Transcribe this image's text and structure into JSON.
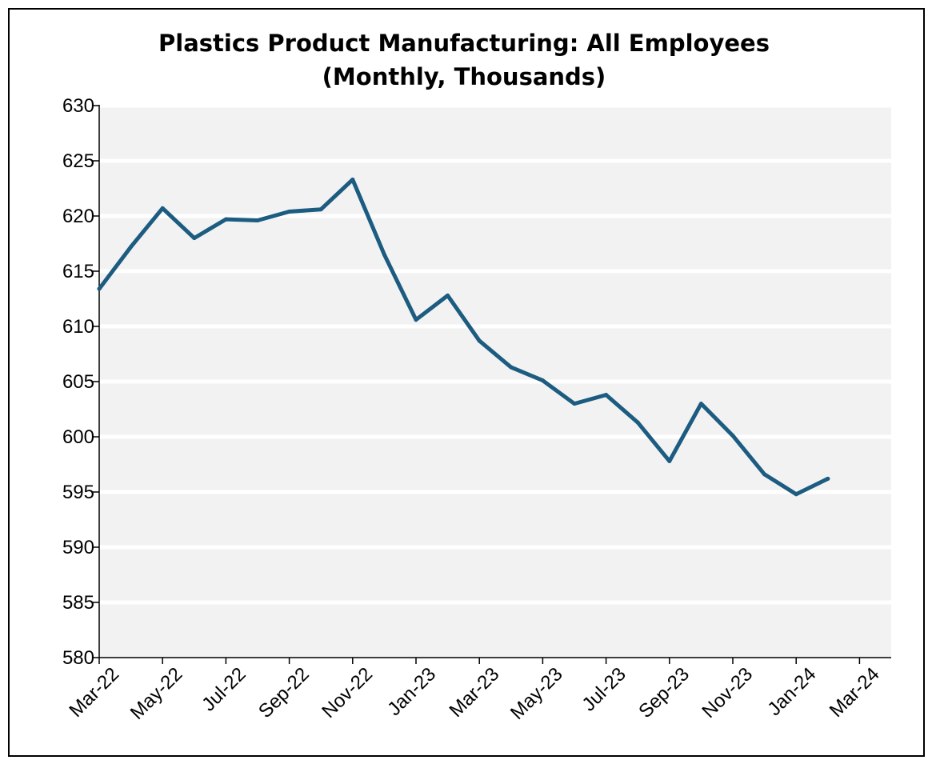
{
  "chart_data": {
    "type": "line",
    "title_line1": "Plastics Product Manufacturing: All Employees",
    "title_line2": "(Monthly, Thousands)",
    "xlabel": "",
    "ylabel": "",
    "ylim": [
      580,
      630
    ],
    "yticks": [
      580,
      585,
      590,
      595,
      600,
      605,
      610,
      615,
      620,
      625,
      630
    ],
    "xtick_labels": [
      "Mar-22",
      "May-22",
      "Jul-22",
      "Sep-22",
      "Nov-22",
      "Jan-23",
      "Mar-23",
      "May-23",
      "Jul-23",
      "Sep-23",
      "Nov-23",
      "Jan-24",
      "Mar-24"
    ],
    "x": [
      "Mar-22",
      "Apr-22",
      "May-22",
      "Jun-22",
      "Jul-22",
      "Aug-22",
      "Sep-22",
      "Oct-22",
      "Nov-22",
      "Dec-22",
      "Jan-23",
      "Feb-23",
      "Mar-23",
      "Apr-23",
      "May-23",
      "Jun-23",
      "Jul-23",
      "Aug-23",
      "Sep-23",
      "Oct-23",
      "Nov-23",
      "Dec-23",
      "Jan-24",
      "Feb-24"
    ],
    "series": [
      {
        "values": [
          613.4,
          617.2,
          620.7,
          618.0,
          619.7,
          619.6,
          620.4,
          620.6,
          623.3,
          616.5,
          610.6,
          612.8,
          608.7,
          606.3,
          605.1,
          603.0,
          603.8,
          601.3,
          597.8,
          603.0,
          600.1,
          596.6,
          594.8,
          596.2
        ]
      }
    ],
    "grid": true,
    "legend": "none",
    "colors": {
      "line": "#1c5c80",
      "plot_bg": "#f2f2f2",
      "gridline": "#ffffff",
      "axis": "#000000"
    }
  }
}
